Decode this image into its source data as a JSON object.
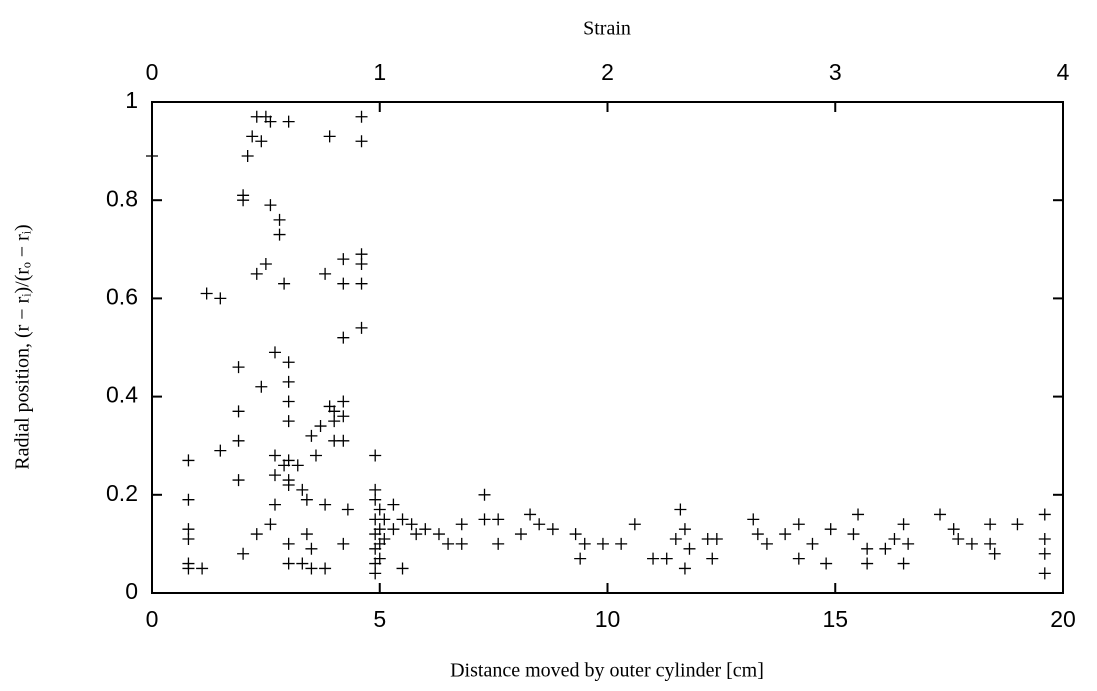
{
  "chart_data": {
    "type": "scatter",
    "title": "Strain",
    "x_label": "Distance moved by outer cylinder [cm]",
    "y_label": "Radial position, (r − rᵢ)/(rₒ − rᵢ)",
    "color": "#000000",
    "xlim": [
      0,
      20
    ],
    "xticks": [
      0,
      5,
      10,
      15,
      20
    ],
    "x2lim": [
      0,
      4
    ],
    "x2ticks": [
      0,
      1,
      2,
      3,
      4
    ],
    "ylim": [
      0,
      1
    ],
    "yticks": [
      0,
      0.2,
      0.4,
      0.6,
      0.8,
      1
    ],
    "x": [
      0.0,
      0.8,
      0.8,
      0.8,
      0.8,
      0.8,
      0.8,
      1.1,
      1.2,
      1.5,
      1.5,
      1.9,
      1.9,
      1.9,
      1.9,
      2.0,
      2.0,
      2.0,
      2.1,
      2.2,
      2.3,
      2.3,
      2.3,
      2.4,
      2.4,
      2.5,
      2.5,
      2.6,
      2.6,
      2.6,
      2.7,
      2.7,
      2.7,
      2.7,
      2.8,
      2.8,
      2.9,
      2.9,
      3.0,
      3.0,
      3.0,
      3.0,
      3.0,
      3.0,
      3.0,
      3.0,
      3.0,
      3.0,
      3.2,
      3.3,
      3.3,
      3.4,
      3.4,
      3.5,
      3.5,
      3.5,
      3.6,
      3.7,
      3.8,
      3.8,
      3.8,
      3.9,
      3.9,
      4.0,
      4.0,
      4.0,
      4.2,
      4.2,
      4.2,
      4.2,
      4.2,
      4.2,
      4.2,
      4.3,
      4.6,
      4.6,
      4.6,
      4.6,
      4.6,
      4.6,
      4.9,
      4.9,
      4.9,
      4.9,
      4.9,
      4.9,
      4.9,
      4.9,
      5.0,
      5.0,
      5.0,
      5.0,
      5.1,
      5.1,
      5.3,
      5.3,
      5.5,
      5.5,
      5.7,
      5.8,
      6.0,
      6.3,
      6.5,
      6.8,
      6.8,
      7.3,
      7.3,
      7.6,
      7.6,
      8.1,
      8.3,
      8.5,
      8.8,
      9.3,
      9.4,
      9.5,
      9.9,
      10.3,
      10.6,
      11.0,
      11.3,
      11.5,
      11.6,
      11.7,
      11.7,
      11.8,
      12.2,
      12.3,
      12.4,
      13.2,
      13.3,
      13.5,
      13.9,
      14.2,
      14.2,
      14.5,
      14.8,
      14.9,
      15.4,
      15.5,
      15.7,
      15.7,
      16.1,
      16.3,
      16.5,
      16.5,
      16.6,
      17.3,
      17.6,
      17.7,
      18.0,
      18.4,
      18.4,
      18.5,
      19.0,
      19.6,
      19.6,
      19.6,
      19.6
    ],
    "values": [
      0.89,
      0.27,
      0.19,
      0.13,
      0.11,
      0.06,
      0.05,
      0.05,
      0.61,
      0.6,
      0.29,
      0.46,
      0.37,
      0.31,
      0.23,
      0.08,
      0.81,
      0.8,
      0.89,
      0.93,
      0.97,
      0.65,
      0.12,
      0.92,
      0.42,
      0.97,
      0.67,
      0.96,
      0.79,
      0.14,
      0.49,
      0.28,
      0.24,
      0.18,
      0.76,
      0.73,
      0.63,
      0.26,
      0.96,
      0.47,
      0.43,
      0.39,
      0.35,
      0.27,
      0.23,
      0.22,
      0.1,
      0.06,
      0.26,
      0.21,
      0.06,
      0.19,
      0.12,
      0.32,
      0.05,
      0.09,
      0.28,
      0.34,
      0.65,
      0.18,
      0.05,
      0.38,
      0.93,
      0.37,
      0.31,
      0.35,
      0.68,
      0.63,
      0.52,
      0.39,
      0.36,
      0.31,
      0.1,
      0.17,
      0.97,
      0.92,
      0.69,
      0.67,
      0.63,
      0.54,
      0.28,
      0.21,
      0.19,
      0.15,
      0.12,
      0.09,
      0.06,
      0.04,
      0.17,
      0.13,
      0.1,
      0.07,
      0.15,
      0.11,
      0.18,
      0.13,
      0.15,
      0.05,
      0.14,
      0.12,
      0.13,
      0.12,
      0.1,
      0.14,
      0.1,
      0.2,
      0.15,
      0.15,
      0.1,
      0.12,
      0.16,
      0.14,
      0.13,
      0.12,
      0.07,
      0.1,
      0.1,
      0.1,
      0.14,
      0.07,
      0.07,
      0.11,
      0.17,
      0.13,
      0.05,
      0.09,
      0.11,
      0.07,
      0.11,
      0.15,
      0.12,
      0.1,
      0.12,
      0.14,
      0.07,
      0.1,
      0.06,
      0.13,
      0.12,
      0.16,
      0.09,
      0.06,
      0.09,
      0.11,
      0.14,
      0.06,
      0.1,
      0.16,
      0.13,
      0.11,
      0.1,
      0.14,
      0.1,
      0.08,
      0.14,
      0.16,
      0.11,
      0.08,
      0.04
    ]
  }
}
